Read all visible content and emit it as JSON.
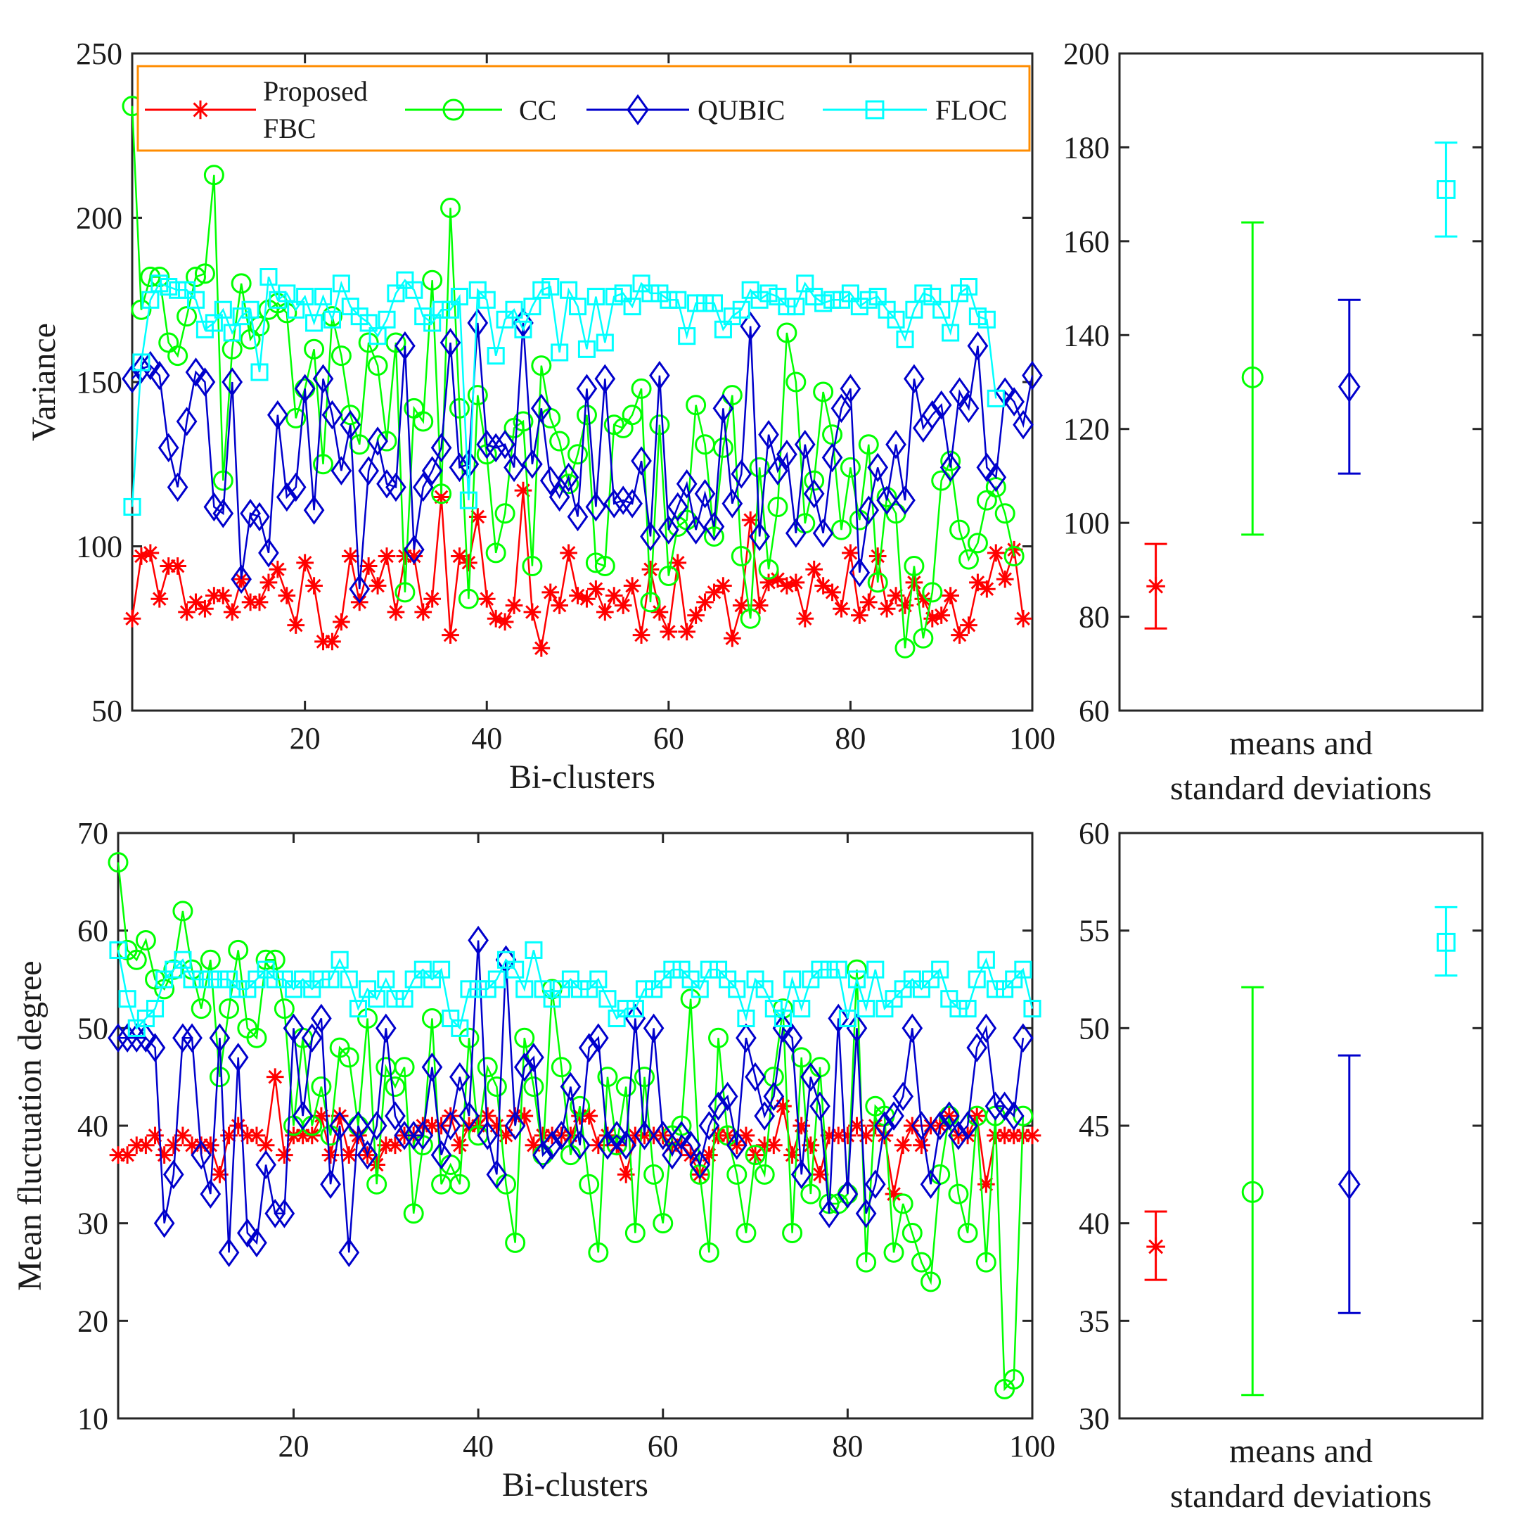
{
  "colors": {
    "fbc": "#ff0000",
    "cc": "#00ff00",
    "qubic": "#0000cc",
    "floc": "#00ffff",
    "legend_border": "#ff8c00",
    "axis": "#262626"
  },
  "legend": {
    "fbc_line1": "Proposed",
    "fbc_line2": "FBC",
    "cc": "CC",
    "qubic": "QUBIC",
    "floc": "FLOC"
  },
  "chart_data": [
    {
      "id": "variance-lines",
      "type": "line",
      "title": "",
      "xlabel": "Bi-clusters",
      "ylabel": "Variance",
      "xlim": [
        1,
        100
      ],
      "ylim": [
        50,
        250
      ],
      "xticks": [
        20,
        40,
        60,
        80,
        100
      ],
      "yticks": [
        50,
        100,
        150,
        200,
        250
      ],
      "x_start": 1,
      "legend_position": "top",
      "series": [
        {
          "name": "Proposed FBC",
          "key": "fbc",
          "marker": "asterisk",
          "values": [
            78,
            97,
            98,
            84,
            94,
            94,
            80,
            83,
            81,
            85,
            85,
            80,
            90,
            83,
            83,
            89,
            93,
            85,
            76,
            95,
            88,
            71,
            71,
            77,
            97,
            83,
            94,
            88,
            97,
            80,
            97,
            97,
            80,
            84,
            115,
            73,
            97,
            95,
            109,
            84,
            78,
            77,
            82,
            117,
            80,
            69,
            86,
            82,
            98,
            85,
            84,
            87,
            80,
            85,
            82,
            88,
            73,
            93,
            80,
            74,
            95,
            74,
            79,
            83,
            86,
            88,
            72,
            82,
            108,
            82,
            89,
            90,
            88,
            89,
            78,
            93,
            88,
            86,
            81,
            98,
            79,
            83,
            97,
            81,
            85,
            82,
            89,
            84,
            78,
            79,
            85,
            73,
            76,
            89,
            87,
            98,
            90,
            99,
            78
          ]
        },
        {
          "name": "CC",
          "key": "cc",
          "marker": "circle",
          "values": [
            234,
            172,
            182,
            182,
            162,
            158,
            170,
            182,
            183,
            213,
            120,
            160,
            180,
            163,
            167,
            172,
            174,
            171,
            139,
            148,
            160,
            125,
            170,
            158,
            140,
            131,
            162,
            155,
            132,
            162,
            86,
            142,
            138,
            181,
            116,
            203,
            142,
            84,
            146,
            128,
            98,
            110,
            136,
            138,
            94,
            155,
            139,
            132,
            119,
            128,
            140,
            95,
            94,
            137,
            136,
            140,
            148,
            83,
            137,
            91,
            106,
            108,
            143,
            131,
            103,
            130,
            146,
            97,
            78,
            124,
            93,
            112,
            165,
            150,
            107,
            120,
            147,
            134,
            105,
            124,
            108,
            131,
            89,
            115,
            110,
            69,
            94,
            72,
            86,
            120,
            126,
            105,
            96,
            101,
            114,
            118,
            110,
            97
          ]
        },
        {
          "name": "QUBIC",
          "key": "qubic",
          "marker": "diamond",
          "values": [
            151,
            154,
            155,
            152,
            130,
            118,
            138,
            153,
            150,
            112,
            110,
            150,
            90,
            110,
            109,
            98,
            140,
            115,
            118,
            148,
            111,
            151,
            140,
            123,
            137,
            87,
            123,
            132,
            119,
            118,
            161,
            99,
            118,
            123,
            130,
            162,
            124,
            125,
            168,
            131,
            130,
            131,
            124,
            168,
            125,
            142,
            120,
            115,
            121,
            109,
            148,
            112,
            151,
            113,
            114,
            113,
            126,
            103,
            152,
            105,
            112,
            119,
            105,
            116,
            106,
            142,
            113,
            122,
            167,
            103,
            134,
            123,
            128,
            104,
            131,
            116,
            104,
            127,
            142,
            148,
            92,
            111,
            124,
            114,
            131,
            114,
            151,
            136,
            140,
            143,
            124,
            147,
            142,
            161,
            124,
            121,
            147,
            144,
            137,
            152
          ]
        },
        {
          "name": "FLOC",
          "key": "floc",
          "marker": "square",
          "values": [
            112,
            156,
            175,
            180,
            179,
            178,
            178,
            175,
            166,
            168,
            172,
            165,
            170,
            172,
            153,
            182,
            175,
            177,
            172,
            176,
            168,
            176,
            169,
            180,
            173,
            170,
            168,
            164,
            169,
            177,
            181,
            178,
            170,
            168,
            172,
            172,
            176,
            114,
            178,
            175,
            158,
            169,
            172,
            166,
            173,
            178,
            179,
            159,
            178,
            173,
            160,
            176,
            162,
            176,
            177,
            173,
            180,
            177,
            177,
            175,
            175,
            164,
            174,
            174,
            174,
            166,
            170,
            172,
            178,
            175,
            177,
            176,
            173,
            173,
            180,
            176,
            174,
            175,
            175,
            177,
            173,
            175,
            176,
            172,
            169,
            163,
            172,
            177,
            176,
            172,
            165,
            177,
            179,
            170,
            169,
            145
          ]
        }
      ]
    },
    {
      "id": "variance-summary",
      "type": "errorbar",
      "xlabel_line1": "means and",
      "xlabel_line2": "standard deviations",
      "ylim": [
        60,
        200
      ],
      "yticks": [
        60,
        80,
        100,
        120,
        140,
        160,
        180,
        200
      ],
      "points": [
        {
          "key": "fbc",
          "marker": "asterisk",
          "mean": 86.5,
          "low": 77.5,
          "high": 95.5
        },
        {
          "key": "cc",
          "marker": "circle",
          "mean": 131,
          "low": 97.5,
          "high": 164
        },
        {
          "key": "qubic",
          "marker": "diamond",
          "mean": 129,
          "low": 110.5,
          "high": 147.5
        },
        {
          "key": "floc",
          "marker": "square",
          "mean": 171,
          "low": 161,
          "high": 181
        }
      ]
    },
    {
      "id": "fluctuation-lines",
      "type": "line",
      "title": "",
      "xlabel": "Bi-clusters",
      "ylabel": "Mean fluctuation degree",
      "xlim": [
        1,
        100
      ],
      "ylim": [
        10,
        70
      ],
      "xticks": [
        20,
        40,
        60,
        80,
        100
      ],
      "yticks": [
        10,
        20,
        30,
        40,
        50,
        60,
        70
      ],
      "x_start": 1,
      "series": [
        {
          "name": "Proposed FBC",
          "key": "fbc",
          "marker": "asterisk",
          "values": [
            37,
            37,
            38,
            38,
            39,
            37,
            38,
            39,
            38,
            38,
            38,
            35,
            39,
            40,
            39,
            39,
            38,
            45,
            37,
            39,
            39,
            39,
            41,
            37,
            41,
            37,
            39,
            37,
            36,
            38,
            38,
            39,
            39,
            40,
            40,
            40,
            41,
            38,
            40,
            40,
            41,
            40,
            39,
            41,
            41,
            38,
            39,
            39,
            39,
            39,
            41,
            41,
            38,
            39,
            38,
            35,
            39,
            39,
            39,
            39,
            38,
            38,
            37,
            35,
            37,
            39,
            39,
            38,
            39,
            37,
            38,
            38,
            42,
            37,
            40,
            38,
            35,
            39,
            39,
            39,
            40,
            39,
            40,
            39,
            33,
            38,
            40,
            38,
            40,
            40,
            41,
            39,
            39,
            41,
            34,
            39,
            39,
            39,
            39,
            39
          ]
        },
        {
          "name": "CC",
          "key": "cc",
          "marker": "circle",
          "values": [
            67,
            58,
            57,
            59,
            55,
            54,
            56,
            62,
            56,
            52,
            57,
            45,
            52,
            58,
            50,
            49,
            57,
            57,
            52,
            40,
            49,
            40,
            44,
            39,
            48,
            47,
            40,
            51,
            34,
            46,
            44,
            46,
            31,
            38,
            51,
            34,
            36,
            34,
            49,
            39,
            46,
            44,
            34,
            28,
            49,
            44,
            37,
            54,
            46,
            37,
            42,
            34,
            27,
            45,
            38,
            44,
            29,
            45,
            35,
            30,
            39,
            40,
            53,
            35,
            27,
            49,
            39,
            35,
            29,
            37,
            35,
            45,
            52,
            29,
            47,
            33,
            46,
            32,
            32,
            33,
            56,
            26,
            42,
            41,
            27,
            32,
            29,
            26,
            24,
            35,
            41,
            33,
            29,
            41,
            26,
            41,
            13,
            14,
            41
          ]
        },
        {
          "name": "QUBIC",
          "key": "qubic",
          "marker": "diamond",
          "values": [
            49,
            49,
            49,
            49,
            48,
            30,
            35,
            49,
            49,
            37,
            33,
            49,
            27,
            47,
            29,
            28,
            36,
            31,
            31,
            50,
            41,
            49,
            51,
            34,
            40,
            27,
            40,
            37,
            40,
            50,
            41,
            39,
            39,
            39,
            46,
            37,
            40,
            45,
            41,
            59,
            39,
            35,
            57,
            40,
            46,
            47,
            37,
            38,
            39,
            44,
            38,
            48,
            49,
            38,
            39,
            38,
            51,
            39,
            50,
            39,
            37,
            39,
            38,
            36,
            40,
            42,
            43,
            38,
            49,
            45,
            41,
            43,
            50,
            49,
            35,
            45,
            42,
            31,
            51,
            33,
            50,
            31,
            34,
            40,
            41,
            43,
            50,
            40,
            34,
            40,
            41,
            39,
            40,
            48,
            50,
            42,
            42,
            41,
            49
          ]
        },
        {
          "name": "FLOC",
          "key": "floc",
          "marker": "square",
          "values": [
            58,
            53,
            50,
            51,
            52,
            55,
            56,
            57,
            55,
            55,
            55,
            55,
            55,
            54,
            54,
            55,
            56,
            55,
            55,
            54,
            55,
            54,
            55,
            55,
            57,
            55,
            52,
            54,
            53,
            55,
            53,
            53,
            55,
            56,
            55,
            56,
            51,
            50,
            54,
            54,
            54,
            55,
            57,
            56,
            54,
            58,
            54,
            53,
            54,
            55,
            54,
            54,
            55,
            53,
            51,
            52,
            52,
            54,
            54,
            55,
            56,
            56,
            55,
            54,
            56,
            56,
            55,
            54,
            51,
            55,
            54,
            52,
            51,
            55,
            52,
            55,
            56,
            56,
            56,
            51,
            55,
            52,
            56,
            52,
            53,
            54,
            55,
            54,
            55,
            56,
            53,
            52,
            52,
            55,
            57,
            54,
            54,
            55,
            56,
            52
          ]
        }
      ]
    },
    {
      "id": "fluctuation-summary",
      "type": "errorbar",
      "xlabel_line1": "means and",
      "xlabel_line2": "standard deviations",
      "ylim": [
        30,
        60
      ],
      "yticks": [
        30,
        35,
        40,
        45,
        50,
        55,
        60
      ],
      "points": [
        {
          "key": "fbc",
          "marker": "asterisk",
          "mean": 38.8,
          "low": 37.1,
          "high": 40.6
        },
        {
          "key": "cc",
          "marker": "circle",
          "mean": 41.6,
          "low": 31.2,
          "high": 52.1
        },
        {
          "key": "qubic",
          "marker": "diamond",
          "mean": 42,
          "low": 35.4,
          "high": 48.6
        },
        {
          "key": "floc",
          "marker": "square",
          "mean": 54.4,
          "low": 52.7,
          "high": 56.2
        }
      ]
    }
  ]
}
